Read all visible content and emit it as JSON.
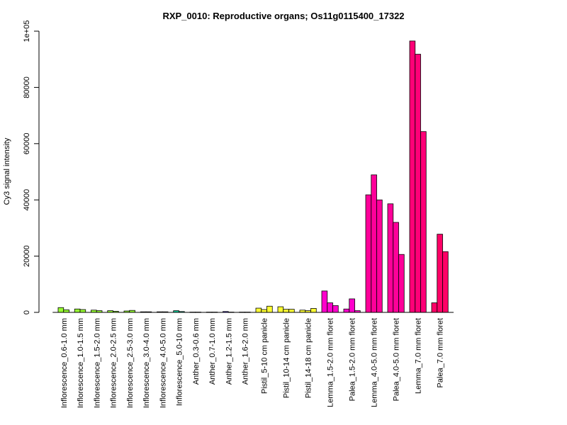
{
  "chart_data": {
    "type": "bar",
    "title": "RXP_0010: Reproductive organs; Os11g0115400_17322",
    "xlabel": "",
    "ylabel": "Cy3 signal intensity",
    "ylim": [
      0,
      100000
    ],
    "yticks": [
      {
        "value": 0,
        "label": "0"
      },
      {
        "value": 20000,
        "label": "20000"
      },
      {
        "value": 40000,
        "label": "40000"
      },
      {
        "value": 60000,
        "label": "60000"
      },
      {
        "value": 80000,
        "label": "80000"
      },
      {
        "value": 100000,
        "label": "1e+05"
      }
    ],
    "grid": false,
    "legend": "none",
    "groups": [
      {
        "label": "Inflorescence_0.6-1.0 mm",
        "color": "#99ff33",
        "values": [
          1700,
          900
        ]
      },
      {
        "label": "Inflorescence_1.0-1.5 mm",
        "color": "#99ff33",
        "values": [
          1200,
          1000
        ]
      },
      {
        "label": "Inflorescence_1.5-2.0 mm",
        "color": "#99ff33",
        "values": [
          800,
          600
        ]
      },
      {
        "label": "Inflorescence_2.0-2.5 mm",
        "color": "#99ff33",
        "values": [
          600,
          400
        ]
      },
      {
        "label": "Inflorescence_2.5-3.0 mm",
        "color": "#99ff33",
        "values": [
          500,
          700
        ]
      },
      {
        "label": "Inflorescence_3.0-4.0 mm",
        "color": "#66cc33",
        "values": [
          200,
          200
        ]
      },
      {
        "label": "Inflorescence_4.0-5.0 mm",
        "color": "#33cc66",
        "values": [
          200,
          200
        ]
      },
      {
        "label": "Inflorescence_5.0-10 mm",
        "color": "#00cc99",
        "values": [
          600,
          300
        ]
      },
      {
        "label": "Anther_0.3-0.6 mm",
        "color": "#3366ff",
        "values": [
          100,
          100
        ]
      },
      {
        "label": "Anther_0.7-1.0 mm",
        "color": "#3333ff",
        "values": [
          100,
          100
        ]
      },
      {
        "label": "Anther_1.2-1.5 mm",
        "color": "#3300ff",
        "values": [
          300,
          100
        ]
      },
      {
        "label": "Anther_1.6-2.0 mm",
        "color": "#6600ff",
        "values": [
          100,
          100
        ]
      },
      {
        "label": "Pistil_5-10 cm panicle",
        "color": "#ffff33",
        "values": [
          1500,
          1000,
          2200
        ]
      },
      {
        "label": "Pistil_10-14 cm panicle",
        "color": "#ffff33",
        "values": [
          2000,
          1100,
          1100
        ]
      },
      {
        "label": "Pistil_14-18 cm panicle",
        "color": "#ffff33",
        "values": [
          800,
          600,
          1400
        ]
      },
      {
        "label": "Lemma_1.5-2.0 mm floret",
        "color": "#ff00cc",
        "values": [
          7600,
          3400,
          2400
        ]
      },
      {
        "label": "Palea_1.5-2.0 mm floret",
        "color": "#ff00cc",
        "values": [
          1200,
          4800,
          600
        ]
      },
      {
        "label": "Lemma_4.0-5.0 mm floret",
        "color": "#ff0099",
        "values": [
          41800,
          48900,
          40000
        ]
      },
      {
        "label": "Palea_4.0-5.0 mm floret",
        "color": "#ff0099",
        "values": [
          38600,
          32000,
          20600
        ]
      },
      {
        "label": "Lemma_7.0 mm floret",
        "color": "#ff0077",
        "values": [
          96500,
          91800,
          64300
        ]
      },
      {
        "label": "Palea_7.0 mm floret",
        "color": "#ff0066",
        "values": [
          3400,
          27800,
          21600
        ]
      }
    ]
  }
}
